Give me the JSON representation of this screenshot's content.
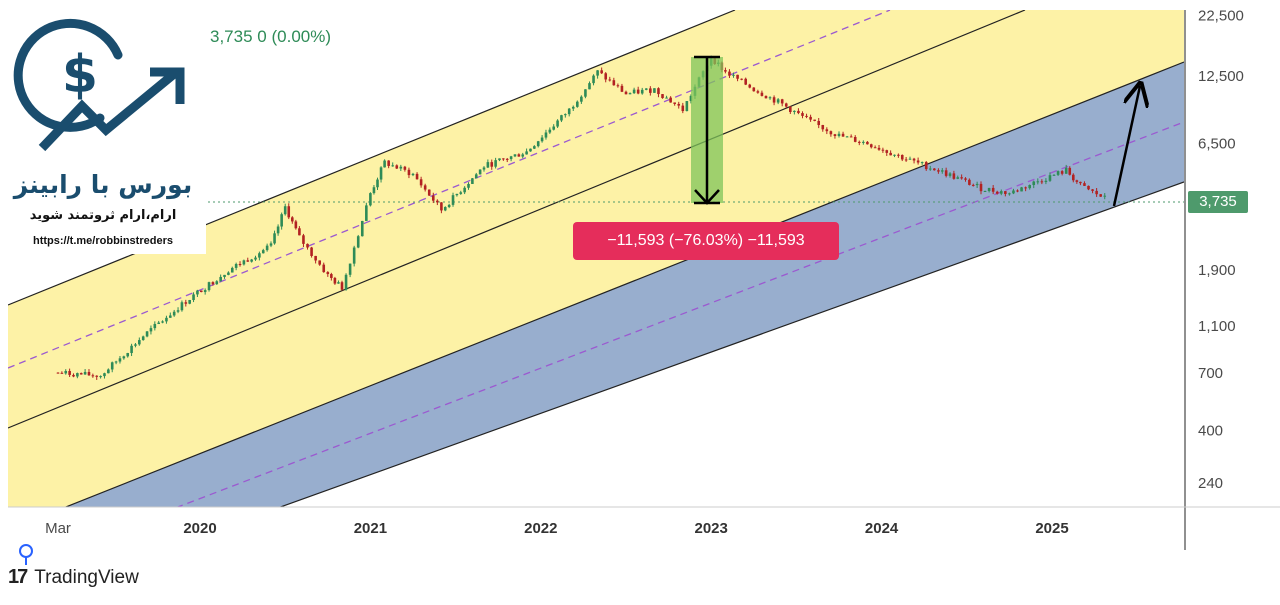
{
  "header": {
    "price": "3,735",
    "change": "0",
    "change_pct": "(0.00%)"
  },
  "branding": {
    "title": "بورس با رابینز",
    "tagline": "ارام،ارام ثروتمند شوید",
    "url": "https://t.me/robbinstreders",
    "logo_icon": "dollar-growth-arrow-icon",
    "color": "#1a4d6e"
  },
  "price_tag": {
    "label": "3,735",
    "color": "#4e9a6c"
  },
  "measure": {
    "label": "−11,593 (−76.03%) −11,593",
    "color": "#e52d5b",
    "from": 15328,
    "to": 3735
  },
  "footer": {
    "brand": "TradingView"
  },
  "chart_data": {
    "type": "candlestick",
    "scale": "log",
    "y_ticks": [
      22500,
      12500,
      6500,
      1900,
      1100,
      700,
      400,
      240
    ],
    "y_tick_labels": [
      "22,500",
      "12,500",
      "6,500",
      "1,900",
      "1,100",
      "700",
      "400",
      "240"
    ],
    "x_tick_labels": [
      "Mar",
      "2020",
      "2021",
      "2022",
      "2023",
      "2024",
      "2025"
    ],
    "x_ticks": [
      "2019-03",
      "2020-01",
      "2021-01",
      "2022-01",
      "2023-01",
      "2024-01",
      "2025-01"
    ],
    "x_range": [
      "2019-03",
      "2025-12"
    ],
    "last_price": 3735,
    "colors": {
      "upper_channel": "#fdf2a6",
      "lower_channel": "#98aece",
      "midline": "#9b59d0",
      "up": "#2e8b57",
      "down": "#b22222"
    },
    "series": [
      {
        "date": "2019-03",
        "close": 700
      },
      {
        "date": "2019-06",
        "close": 680
      },
      {
        "date": "2019-09",
        "close": 1000
      },
      {
        "date": "2019-12",
        "close": 1400
      },
      {
        "date": "2020-03",
        "close": 1900
      },
      {
        "date": "2020-06",
        "close": 2400
      },
      {
        "date": "2020-07",
        "close": 3500
      },
      {
        "date": "2020-08",
        "close": 2600
      },
      {
        "date": "2020-10",
        "close": 1800
      },
      {
        "date": "2020-11",
        "close": 1600
      },
      {
        "date": "2021-01",
        "close": 4000
      },
      {
        "date": "2021-02",
        "close": 5400
      },
      {
        "date": "2021-04",
        "close": 4800
      },
      {
        "date": "2021-06",
        "close": 3400
      },
      {
        "date": "2021-09",
        "close": 5200
      },
      {
        "date": "2021-12",
        "close": 6000
      },
      {
        "date": "2022-03",
        "close": 9000
      },
      {
        "date": "2022-05",
        "close": 13000
      },
      {
        "date": "2022-07",
        "close": 10500
      },
      {
        "date": "2022-09",
        "close": 11000
      },
      {
        "date": "2022-11",
        "close": 9000
      },
      {
        "date": "2023-01",
        "close": 15000
      },
      {
        "date": "2023-02",
        "close": 13000
      },
      {
        "date": "2023-04",
        "close": 11000
      },
      {
        "date": "2023-06",
        "close": 9500
      },
      {
        "date": "2023-08",
        "close": 8000
      },
      {
        "date": "2023-10",
        "close": 7000
      },
      {
        "date": "2023-12",
        "close": 6500
      },
      {
        "date": "2024-03",
        "close": 5500
      },
      {
        "date": "2024-05",
        "close": 5000
      },
      {
        "date": "2024-08",
        "close": 4200
      },
      {
        "date": "2024-10",
        "close": 4000
      },
      {
        "date": "2024-12",
        "close": 4500
      },
      {
        "date": "2025-02",
        "close": 5000
      },
      {
        "date": "2025-03",
        "close": 4300
      },
      {
        "date": "2025-05",
        "close": 3735
      }
    ]
  }
}
